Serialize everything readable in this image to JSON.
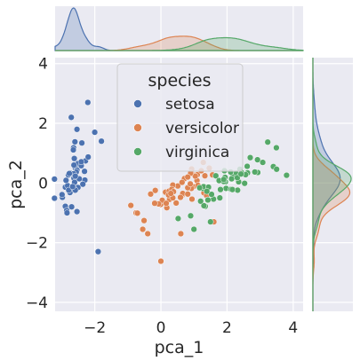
{
  "chart_data": {
    "type": "scatter",
    "subtype": "jointplot-kde-marginals",
    "title": "",
    "xlabel": "pca_1",
    "ylabel": "pca_2",
    "xlim": [
      -3.2,
      4.3
    ],
    "ylim": [
      -4.3,
      4.2
    ],
    "xticks": [
      -2,
      0,
      2,
      4
    ],
    "yticks": [
      -4,
      -2,
      0,
      2,
      4
    ],
    "grid": true,
    "legend": {
      "title": "species",
      "placement": "upper-center"
    },
    "series": [
      {
        "name": "setosa",
        "color": "#4c72b0",
        "x": [
          -2.68,
          -2.71,
          -2.89,
          -2.75,
          -2.73,
          -2.28,
          -2.82,
          -2.63,
          -2.89,
          -2.67,
          -2.51,
          -2.61,
          -2.79,
          -3.22,
          -2.64,
          -2.39,
          -2.62,
          -2.65,
          -2.2,
          -2.59,
          -2.31,
          -2.54,
          -3.22,
          -2.3,
          -2.36,
          -2.51,
          -2.47,
          -2.56,
          -2.64,
          -2.63,
          -2.59,
          -2.41,
          -2.65,
          -2.6,
          -2.67,
          -2.87,
          -2.63,
          -2.8,
          -2.98,
          -2.59,
          -2.77,
          -2.85,
          -2.99,
          -2.41,
          -2.21,
          -2.71,
          -2.54,
          -2.84,
          -2.54,
          -2.7,
          -1.9,
          -2.0,
          -1.8
        ],
        "y": [
          0.32,
          -0.18,
          -0.14,
          -0.32,
          0.33,
          0.74,
          -0.09,
          0.16,
          -0.78,
          -0.11,
          0.65,
          0.02,
          -0.24,
          -0.51,
          1.18,
          1.34,
          0.82,
          0.32,
          0.87,
          0.51,
          0.39,
          0.43,
          0.13,
          0.1,
          -0.04,
          -0.15,
          0.14,
          0.37,
          0.31,
          -0.19,
          -0.24,
          0.58,
          1.11,
          1.38,
          -0.12,
          0.09,
          0.6,
          0.27,
          -0.48,
          0.23,
          0.32,
          -0.92,
          -0.39,
          0.71,
          2.7,
          2.2,
          1.8,
          -1.0,
          -0.96,
          -0.8,
          -2.3,
          1.7,
          1.4
        ]
      },
      {
        "name": "versicolor",
        "color": "#dd8452",
        "x": [
          1.28,
          0.93,
          1.46,
          0.18,
          1.09,
          0.64,
          1.1,
          -0.75,
          1.04,
          -0.01,
          -0.51,
          0.51,
          0.26,
          0.98,
          -0.17,
          0.93,
          0.66,
          0.23,
          0.94,
          0.04,
          1.12,
          0.36,
          1.3,
          0.92,
          0.71,
          0.9,
          1.33,
          1.56,
          0.81,
          -0.31,
          -0.07,
          -0.19,
          0.14,
          1.38,
          0.59,
          0.81,
          1.22,
          0.81,
          0.25,
          0.16,
          0.46,
          0.89,
          0.23,
          -0.71,
          0.36,
          0.33,
          0.38,
          0.64,
          -0.91,
          0.3,
          -0.55,
          -0.4,
          0.0,
          0.6,
          1.6
        ],
        "y": [
          0.69,
          0.32,
          0.5,
          -0.83,
          0.08,
          -0.42,
          0.28,
          -1.0,
          0.23,
          -0.72,
          -1.26,
          -0.1,
          -0.55,
          -0.12,
          -0.25,
          0.47,
          -0.35,
          -0.33,
          -0.54,
          -0.58,
          -0.08,
          -0.07,
          -0.33,
          -0.18,
          0.15,
          0.33,
          0.24,
          0.27,
          -0.16,
          -0.37,
          -0.7,
          -0.68,
          -0.31,
          -0.42,
          -0.48,
          0.2,
          0.41,
          -0.37,
          -0.27,
          -0.68,
          -0.67,
          -0.03,
          -0.4,
          -1.01,
          -0.5,
          -0.21,
          -0.29,
          0.02,
          -0.75,
          -0.35,
          -1.55,
          -1.7,
          -2.62,
          -1.7,
          -1.3
        ]
      },
      {
        "name": "virginica",
        "color": "#55a868",
        "x": [
          2.53,
          1.41,
          2.62,
          1.97,
          2.35,
          3.4,
          0.52,
          2.93,
          2.32,
          2.92,
          1.66,
          1.8,
          2.17,
          1.34,
          1.59,
          1.9,
          1.95,
          3.49,
          3.8,
          1.3,
          2.43,
          1.2,
          3.5,
          1.39,
          2.28,
          2.61,
          1.26,
          1.29,
          2.12,
          2.39,
          2.84,
          3.23,
          2.16,
          1.44,
          1.78,
          3.08,
          2.14,
          1.9,
          1.17,
          2.11,
          2.31,
          1.92,
          1.42,
          2.56,
          2.42,
          1.94,
          1.53,
          1.76,
          1.9,
          1.39,
          1.0,
          1.5,
          0.9,
          2.7
        ],
        "y": [
          -0.01,
          -0.57,
          0.34,
          -0.18,
          0.04,
          0.55,
          -1.19,
          0.35,
          -0.24,
          0.78,
          0.24,
          -0.22,
          0.22,
          -0.78,
          -0.54,
          0.12,
          0.04,
          1.18,
          0.26,
          -0.76,
          0.37,
          -0.61,
          0.46,
          -0.2,
          0.33,
          0.56,
          -0.18,
          -0.12,
          -0.21,
          0.46,
          0.37,
          1.37,
          -0.22,
          -0.14,
          -0.5,
          0.69,
          0.14,
          0.05,
          -0.16,
          0.37,
          0.18,
          0.41,
          -0.57,
          0.28,
          0.3,
          0.19,
          -0.38,
          0.08,
          0.12,
          -0.28,
          -1.55,
          -1.3,
          -1.1,
          0.85
        ]
      }
    ]
  }
}
